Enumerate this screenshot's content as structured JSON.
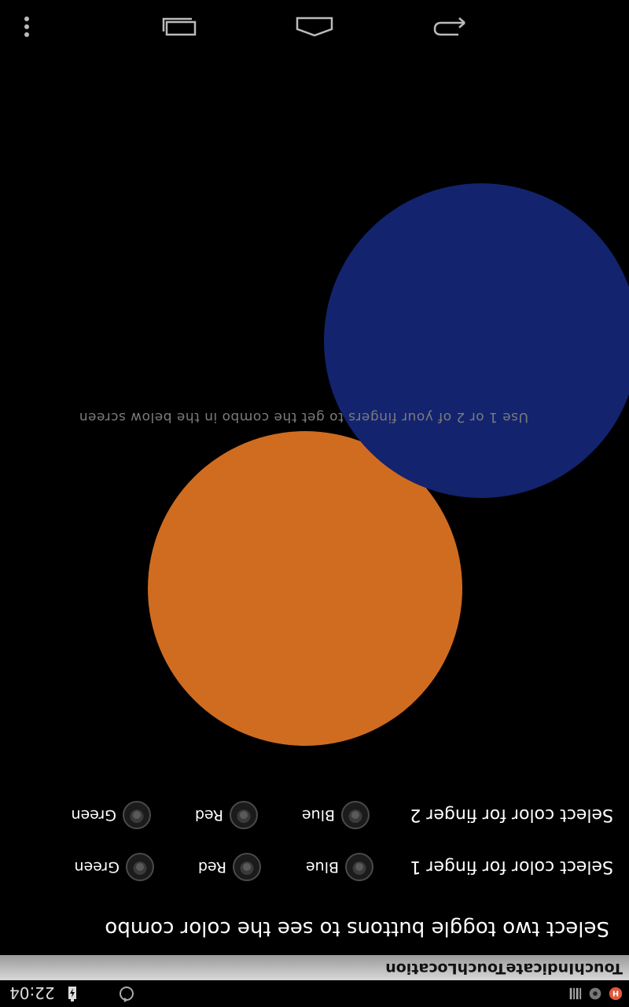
{
  "status_bar": {
    "time": "22:04",
    "icons": [
      "app-h-icon",
      "gear-icon",
      "barcode-icon",
      "sync-icon",
      "battery-charging-icon"
    ]
  },
  "action_bar": {
    "title": "TouchIndicateTouchLocation"
  },
  "main": {
    "heading": "Select two toggle buttons to see the color combo",
    "finger1": {
      "label": "Select color for finger 1",
      "options": [
        "Blue",
        "Red",
        "Green"
      ]
    },
    "finger2": {
      "label": "Select color for finger 2",
      "options": [
        "Blue",
        "Red",
        "Green"
      ]
    },
    "instruction": "Use 1 or 2 of your fingers to get the combo in the below screen"
  },
  "touch_circles": {
    "colors": [
      "#d06c20",
      "#13236e"
    ]
  },
  "nav_bar": {
    "icons": [
      "back-icon",
      "home-icon",
      "recent-apps-icon",
      "overflow-menu-icon"
    ]
  }
}
